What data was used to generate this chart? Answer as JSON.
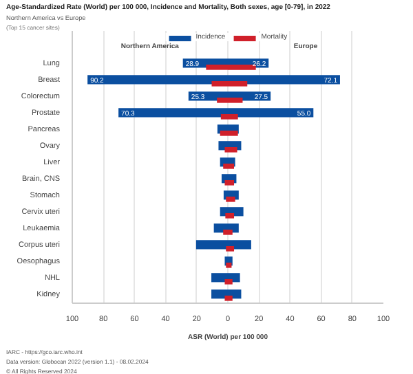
{
  "chart_data": [
    {
      "type": "bar",
      "orientation": "horizontal",
      "title": "Age-Standardized Rate (World) per 100 000, Incidence and Mortality, Both sexes, age [0-79], in 2022",
      "subtitle": "Northern America vs Europe",
      "xlabel": "ASR (World) per 100 000",
      "categories": [
        "Lung",
        "Breast",
        "Colorectum",
        "Prostate",
        "Pancreas",
        "Ovary",
        "Liver",
        "Brain, CNS",
        "Stomach",
        "Cervix uteri",
        "Leukaemia",
        "Corpus uteri",
        "Oesophagus",
        "NHL",
        "Kidney"
      ],
      "series": [
        {
          "name": "Incidence",
          "color": "#0b4fa0",
          "values": [
            28.9,
            90.2,
            25.3,
            70.3,
            6.7,
            6,
            5,
            4,
            2.7,
            5,
            9,
            20.4,
            2,
            10.6,
            10.6
          ],
          "value_labels": [
            "28.9",
            "90.2",
            "25.3",
            "70.3",
            null,
            null,
            null,
            null,
            null,
            null,
            null,
            null,
            null,
            null,
            null
          ]
        },
        {
          "name": "Mortality",
          "color": "#d0202a",
          "values": [
            14,
            10.4,
            7,
            4.5,
            5,
            2,
            3,
            2,
            1.2,
            1.6,
            3,
            1.2,
            1.2,
            2,
            2
          ]
        }
      ],
      "xlim": [
        100,
        0
      ],
      "xticks": [
        100,
        80,
        60,
        40,
        20,
        0
      ],
      "grid": "x",
      "legend": "top right",
      "annotations": [
        "Northern America",
        "(Top 15 cancer sites)",
        "IARC - https://gco.iarc.who.int",
        "Data version: Globocan 2022 (version 1.1) - 08.02.2024",
        "© All Rights Reserved 2024"
      ]
    },
    {
      "type": "bar",
      "orientation": "horizontal",
      "series": [
        {
          "color": "#0b4fa0",
          "values": [
            26.2,
            72.1,
            27.5,
            55.0,
            7,
            8.6,
            4.7,
            5.5,
            7,
            10,
            7,
            15,
            3,
            7.8,
            8.6
          ],
          "value_labels": [
            "26.2",
            "72.1",
            "27.5",
            "55.0",
            null,
            null,
            null,
            null,
            null,
            null,
            null,
            null,
            null,
            null,
            null
          ]
        },
        {
          "color": "#d0202a",
          "values": [
            18,
            12.5,
            9.5,
            6.5,
            6.5,
            6,
            4,
            4,
            4.7,
            4,
            3,
            4,
            2.4,
            3,
            3
          ]
        }
      ],
      "xlim": [
        0,
        100
      ],
      "xticks": [
        {
          "value": 0,
          "label": null
        },
        20,
        40,
        60,
        80,
        100
      ],
      "grid": "x",
      "tick_labels": "x",
      "annotations": [
        "Europe"
      ]
    }
  ]
}
